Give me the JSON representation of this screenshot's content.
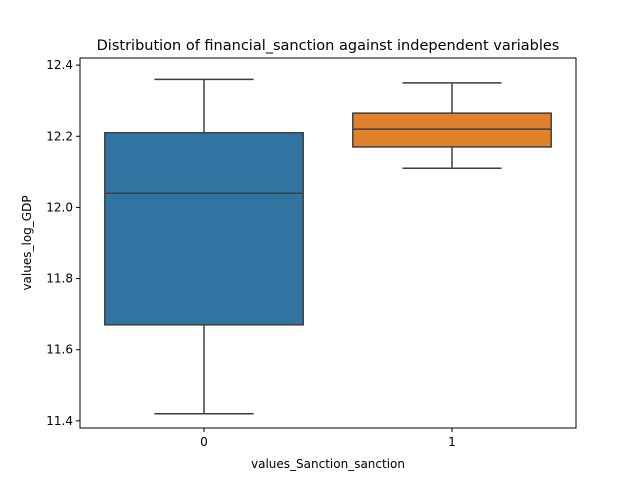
{
  "chart_data": {
    "type": "box",
    "title": "Distribution of financial_sanction against independent variables",
    "xlabel": "values_Sanction_sanction",
    "ylabel": "values_log_GDP",
    "ylim": [
      11.38,
      12.42
    ],
    "yticks": [
      11.4,
      11.6,
      11.8,
      12.0,
      12.2,
      12.4
    ],
    "categories": [
      "0",
      "1"
    ],
    "boxes": [
      {
        "category": "0",
        "whisker_low": 11.42,
        "q1": 11.67,
        "median": 12.04,
        "q3": 12.21,
        "whisker_high": 12.36,
        "color": "#3274a1"
      },
      {
        "category": "1",
        "whisker_low": 12.11,
        "q1": 12.17,
        "median": 12.22,
        "q3": 12.265,
        "whisker_high": 12.35,
        "color": "#e1812c"
      }
    ],
    "grid": false,
    "legend": "none",
    "line_color": "#3f3f3f"
  }
}
